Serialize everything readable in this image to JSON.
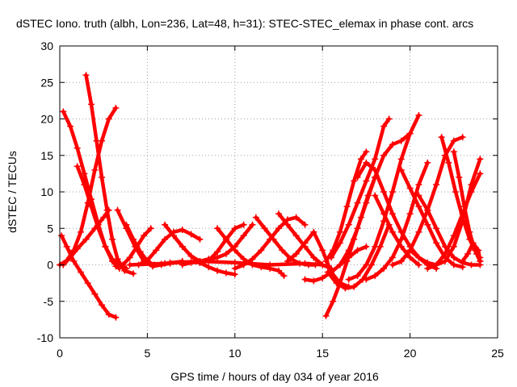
{
  "chart_data": {
    "type": "scatter",
    "title": "dSTEC Iono. truth (albh, Lon=236, Lat=48, h=31): STEC-STEC_elemax in phase cont. arcs",
    "xlabel": "GPS time / hours of day 034 of year 2016",
    "ylabel": "dSTEC  / TECUs",
    "xlim": [
      0,
      25
    ],
    "ylim": [
      -10,
      30
    ],
    "xticks": [
      0,
      5,
      10,
      15,
      20,
      25
    ],
    "yticks": [
      -10,
      -5,
      0,
      5,
      10,
      15,
      20,
      25,
      30
    ],
    "grid": true,
    "marker": "plus",
    "color": "#ff0000",
    "series": [
      {
        "x": [
          0.1,
          0.4,
          0.8,
          1.2,
          1.6,
          2.0,
          2.4,
          2.8,
          3.2
        ],
        "y": [
          4,
          2.5,
          0.5,
          -1,
          -2.5,
          -4,
          -5.5,
          -6.8,
          -7.2
        ]
      },
      {
        "x": [
          0.2,
          0.6,
          1.0,
          1.4,
          1.8,
          2.2,
          2.6,
          3.0,
          3.4
        ],
        "y": [
          21,
          19,
          16,
          12.5,
          9,
          5.5,
          2.5,
          0.5,
          -0.5
        ]
      },
      {
        "x": [
          1.5,
          1.8,
          2.1,
          2.4,
          2.7,
          3.0,
          3.3,
          3.7,
          4.2
        ],
        "y": [
          26,
          22,
          17,
          12,
          7.5,
          3.5,
          0.8,
          -0.8,
          -1.2
        ]
      },
      {
        "x": [
          0.0,
          0.4,
          0.8,
          1.2,
          1.6,
          2.0,
          2.4,
          2.8,
          3.2
        ],
        "y": [
          0,
          0.6,
          2,
          4.5,
          8.5,
          13,
          17,
          20,
          21.5
        ]
      },
      {
        "x": [
          0.2,
          0.6,
          1.0,
          1.5,
          2.0,
          2.5,
          2.8
        ],
        "y": [
          0,
          1,
          2.2,
          3.5,
          5,
          6.5,
          7.5
        ]
      },
      {
        "x": [
          1.0,
          1.4,
          1.8,
          2.2,
          2.6,
          3.0,
          3.4,
          3.8
        ],
        "y": [
          13.5,
          11,
          8,
          5,
          2.5,
          0.8,
          0,
          -0.5
        ]
      },
      {
        "x": [
          3.3,
          3.8,
          4.3,
          4.8,
          5.3,
          5.8,
          6.3,
          7.0
        ],
        "y": [
          7.5,
          5,
          2.5,
          0.5,
          -0.2,
          0,
          0.2,
          0.5
        ]
      },
      {
        "x": [
          3.2,
          3.6,
          4.0,
          4.4,
          4.8,
          5.2
        ],
        "y": [
          -0.2,
          0,
          1,
          2.5,
          4,
          5
        ]
      },
      {
        "x": [
          3.8,
          4.2,
          4.6,
          5.0,
          5.4,
          5.8,
          6.3,
          7.0,
          8.0
        ],
        "y": [
          5.5,
          3.5,
          1.8,
          0.5,
          0,
          0.1,
          0.3,
          0.4,
          0.3
        ]
      },
      {
        "x": [
          4.5,
          5.0,
          5.5,
          6.0,
          6.5,
          7.0,
          7.5,
          8.0
        ],
        "y": [
          0,
          0.6,
          2,
          3.5,
          4.5,
          4.8,
          4.2,
          3.5
        ]
      },
      {
        "x": [
          6.0,
          6.5,
          7.0,
          7.5,
          8.0,
          8.5,
          9.0,
          9.5,
          10.0
        ],
        "y": [
          5.5,
          4,
          2.5,
          1.2,
          0.3,
          -0.3,
          -0.8,
          -1.1,
          -1.3
        ]
      },
      {
        "x": [
          6.5,
          7.0,
          7.5,
          8.0,
          8.5,
          9.0,
          9.5,
          10.0,
          10.5
        ],
        "y": [
          4,
          2.5,
          1.2,
          0.5,
          0.6,
          1.8,
          3.5,
          5,
          5.5
        ]
      },
      {
        "x": [
          7.0,
          7.5,
          8.0,
          8.5,
          9.0,
          9.5,
          10.0,
          10.5,
          11.0
        ],
        "y": [
          0,
          0.3,
          0.5,
          0.8,
          1,
          1.5,
          2.5,
          4,
          5.5
        ]
      },
      {
        "x": [
          9.0,
          9.5,
          10.0,
          10.5,
          11.0,
          11.5,
          12.0,
          12.5,
          12.8
        ],
        "y": [
          5,
          3.5,
          2,
          0.8,
          0,
          -0.3,
          -0.5,
          -0.8,
          -1.5
        ]
      },
      {
        "x": [
          10.0,
          10.5,
          11.0,
          11.5,
          12.0,
          12.5,
          13.0,
          13.5,
          14.0
        ],
        "y": [
          -0.5,
          0,
          0.8,
          2,
          3.5,
          5,
          6.2,
          6.5,
          5.5
        ]
      },
      {
        "x": [
          11.2,
          11.7,
          12.2,
          12.7,
          13.2,
          13.7,
          14.2,
          14.6
        ],
        "y": [
          6.5,
          5,
          3.5,
          2,
          0.8,
          0.2,
          0,
          0
        ]
      },
      {
        "x": [
          12.5,
          13.0,
          13.5,
          14.0,
          14.5,
          15.0,
          15.5
        ],
        "y": [
          7,
          5.5,
          4,
          2.5,
          1,
          0,
          -0.5
        ]
      },
      {
        "x": [
          13.0,
          13.5,
          14.0,
          14.5,
          15.0,
          15.5,
          16.0,
          16.5
        ],
        "y": [
          0.5,
          1.5,
          3,
          4.5,
          2,
          -1,
          -2.5,
          -3
        ]
      },
      {
        "x": [
          14.0,
          14.5,
          15.0,
          15.5,
          16.0,
          16.5,
          17.0,
          17.5
        ],
        "y": [
          -2,
          -2.2,
          -1.8,
          -1,
          0,
          1,
          2,
          2.5
        ]
      },
      {
        "x": [
          15.2,
          15.6,
          16.0,
          16.4,
          16.8,
          17.2,
          17.6,
          18.0
        ],
        "y": [
          -7,
          -5,
          -2.5,
          0.5,
          3.5,
          6.5,
          9.5,
          12
        ]
      },
      {
        "x": [
          15.2,
          15.6,
          16.0,
          16.4,
          16.8,
          17.2,
          17.5
        ],
        "y": [
          0.5,
          2,
          4.5,
          8,
          11.5,
          14.5,
          15.5
        ]
      },
      {
        "x": [
          15.5,
          16.0,
          16.5,
          17.0,
          17.5,
          18.0,
          18.5,
          18.8
        ],
        "y": [
          1,
          3,
          5.5,
          8.5,
          11.5,
          14.5,
          19,
          20
        ]
      },
      {
        "x": [
          15.3,
          15.8,
          16.3,
          16.8,
          17.3,
          17.8,
          18.3,
          18.8
        ],
        "y": [
          -1,
          -2.5,
          -3.2,
          -3,
          -2,
          0,
          2.5,
          5.5
        ]
      },
      {
        "x": [
          16.0,
          16.5,
          17.0,
          17.5,
          18.0,
          18.5,
          19.0,
          19.5,
          20.0,
          20.5
        ],
        "y": [
          0,
          2,
          5,
          8.5,
          12,
          15,
          16.5,
          17,
          18,
          20.5
        ]
      },
      {
        "x": [
          16.5,
          17.0,
          17.5,
          18.0,
          18.5,
          19.0,
          19.5,
          20.0
        ],
        "y": [
          -2,
          -1.5,
          0,
          2.5,
          6,
          10,
          14.5,
          18
        ]
      },
      {
        "x": [
          17.5,
          18.0,
          18.5,
          19.0,
          19.5,
          20.0,
          20.5,
          21.0
        ],
        "y": [
          -2,
          -1.5,
          -0.5,
          1,
          3.5,
          7,
          11,
          14
        ]
      },
      {
        "x": [
          18.0,
          18.5,
          19.0,
          19.5,
          20.0,
          20.5
        ],
        "y": [
          9.5,
          7,
          4.5,
          2.5,
          1,
          0
        ]
      },
      {
        "x": [
          17.0,
          17.5,
          18.0,
          18.5,
          19.0,
          19.5,
          20.0,
          20.5,
          21.0,
          21.5
        ],
        "y": [
          12,
          14,
          13,
          10,
          7,
          4.5,
          2.5,
          1,
          0,
          -0.5
        ]
      },
      {
        "x": [
          19.5,
          20.0,
          20.5,
          21.0,
          21.5,
          22.0,
          22.5,
          23.0
        ],
        "y": [
          13,
          10.5,
          8,
          5.5,
          3,
          1,
          0,
          -0.3
        ]
      },
      {
        "x": [
          19.0,
          19.5,
          20.0,
          20.5,
          21.0,
          21.5,
          22.0,
          22.5,
          23.0
        ],
        "y": [
          0,
          0.5,
          2,
          4.5,
          7.5,
          11,
          15,
          17,
          17.5
        ]
      },
      {
        "x": [
          20.0,
          20.5,
          21.0,
          21.5,
          22.0,
          22.5,
          23.0,
          23.5,
          24.0
        ],
        "y": [
          2,
          1,
          0.3,
          0,
          0.5,
          2.5,
          6,
          11,
          14.5
        ]
      },
      {
        "x": [
          21.8,
          22.2,
          22.6,
          23.0,
          23.4,
          23.8,
          24.0
        ],
        "y": [
          17.5,
          14,
          10,
          6.5,
          3.5,
          1.5,
          0.5
        ]
      },
      {
        "x": [
          22.5,
          22.8,
          23.1,
          23.4,
          23.7,
          24.0
        ],
        "y": [
          15.5,
          12,
          8,
          4.5,
          2,
          1
        ]
      },
      {
        "x": [
          21.0,
          21.5,
          22.0,
          22.5,
          23.0,
          23.5,
          24.0
        ],
        "y": [
          -0.5,
          0,
          1.5,
          4,
          7,
          10,
          12.5
        ]
      },
      {
        "x": [
          20.5,
          21.0,
          21.5,
          22.0,
          22.5,
          23.0,
          23.5,
          24.0
        ],
        "y": [
          9.5,
          7.5,
          5,
          2.5,
          1,
          0.3,
          0,
          0
        ]
      },
      {
        "x": [
          23.0,
          23.3,
          23.6,
          23.9,
          24.0
        ],
        "y": [
          0.5,
          1.5,
          3,
          2,
          0.5
        ]
      },
      {
        "x": [
          4.0,
          6.0,
          8.0,
          10.0,
          12.0,
          14.0,
          15.0
        ],
        "y": [
          0,
          0.2,
          0.5,
          0.3,
          0,
          0.2,
          0
        ]
      }
    ]
  }
}
